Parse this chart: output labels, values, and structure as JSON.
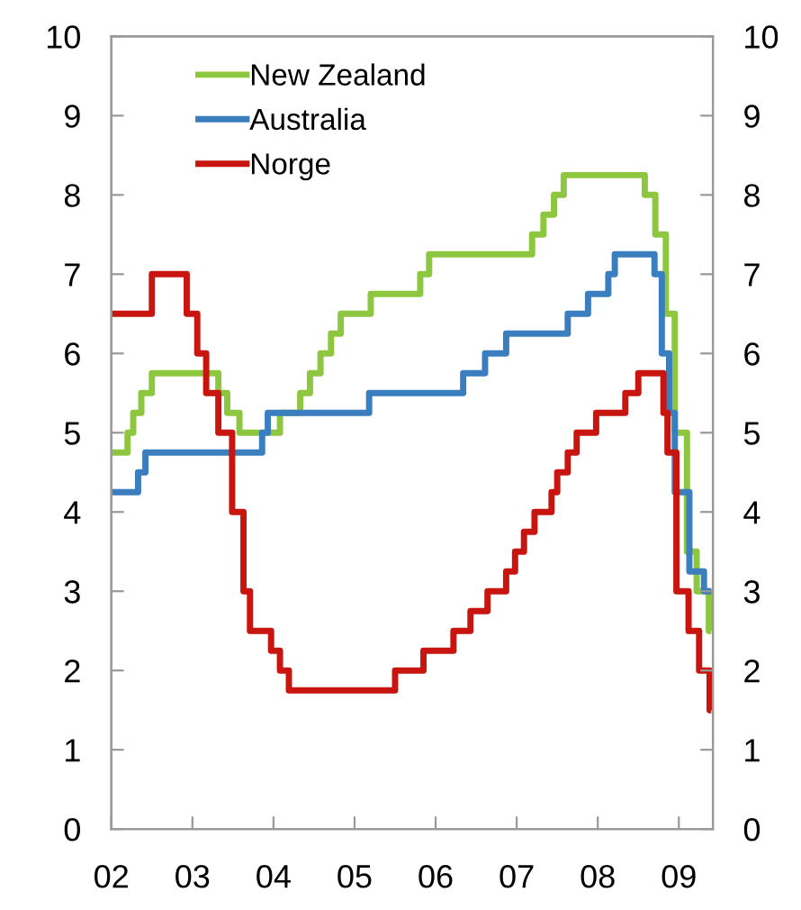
{
  "chart_data": {
    "type": "step",
    "xlim": [
      2002,
      2009.42
    ],
    "xticks": [
      {
        "value": 2002,
        "label": "02"
      },
      {
        "value": 2003,
        "label": "03"
      },
      {
        "value": 2004,
        "label": "04"
      },
      {
        "value": 2005,
        "label": "05"
      },
      {
        "value": 2006,
        "label": "06"
      },
      {
        "value": 2007,
        "label": "07"
      },
      {
        "value": 2008,
        "label": "08"
      },
      {
        "value": 2009,
        "label": "09"
      }
    ],
    "ylim": [
      0,
      10
    ],
    "yticks": [
      0,
      1,
      2,
      3,
      4,
      5,
      6,
      7,
      8,
      9,
      10
    ],
    "y2lim": [
      0,
      10
    ],
    "y2ticks": [
      0,
      1,
      2,
      3,
      4,
      5,
      6,
      7,
      8,
      9,
      10
    ],
    "grid": false,
    "legend": "top left",
    "series": [
      {
        "name": "New Zealand",
        "color": "#8dc63f",
        "x": [
          2002.0,
          2002.2,
          2002.27,
          2002.37,
          2002.5,
          2003.32,
          2003.43,
          2003.58,
          2004.08,
          2004.33,
          2004.45,
          2004.58,
          2004.71,
          2004.83,
          2005.2,
          2005.81,
          2005.92,
          2007.19,
          2007.33,
          2007.46,
          2007.58,
          2008.58,
          2008.71,
          2008.84,
          2008.95,
          2009.1,
          2009.22,
          2009.37,
          2009.4
        ],
        "values": [
          4.75,
          5.0,
          5.25,
          5.5,
          5.75,
          5.5,
          5.25,
          5.0,
          5.25,
          5.5,
          5.75,
          6.0,
          6.25,
          6.5,
          6.75,
          7.0,
          7.25,
          7.5,
          7.75,
          8.0,
          8.25,
          8.0,
          7.5,
          6.5,
          5.0,
          3.5,
          3.0,
          2.5,
          2.5
        ]
      },
      {
        "name": "Australia",
        "color": "#3a7ebf",
        "x": [
          2002.0,
          2002.33,
          2002.42,
          2003.86,
          2003.93,
          2005.18,
          2006.34,
          2006.61,
          2006.87,
          2007.63,
          2007.88,
          2008.13,
          2008.21,
          2008.7,
          2008.79,
          2008.88,
          2008.95,
          2009.13,
          2009.31,
          2009.4
        ],
        "values": [
          4.25,
          4.5,
          4.75,
          5.0,
          5.25,
          5.5,
          5.75,
          6.0,
          6.25,
          6.5,
          6.75,
          7.0,
          7.25,
          7.0,
          6.0,
          5.25,
          4.25,
          3.25,
          3.0,
          3.0
        ]
      },
      {
        "name": "Norge",
        "color": "#c8150f",
        "x": [
          2002.0,
          2002.5,
          2002.93,
          2003.06,
          2003.17,
          2003.32,
          2003.49,
          2003.63,
          2003.71,
          2003.97,
          2004.08,
          2004.19,
          2005.5,
          2005.85,
          2006.22,
          2006.43,
          2006.64,
          2006.87,
          2006.98,
          2007.09,
          2007.22,
          2007.43,
          2007.5,
          2007.63,
          2007.74,
          2007.98,
          2008.34,
          2008.5,
          2008.81,
          2008.86,
          2008.97,
          2009.12,
          2009.25,
          2009.38,
          2009.4
        ],
        "values": [
          6.5,
          7.0,
          6.5,
          6.0,
          5.5,
          5.0,
          4.0,
          3.0,
          2.5,
          2.25,
          2.0,
          1.75,
          2.0,
          2.25,
          2.5,
          2.75,
          3.0,
          3.25,
          3.5,
          3.75,
          4.0,
          4.25,
          4.5,
          4.75,
          5.0,
          5.25,
          5.5,
          5.75,
          5.25,
          4.75,
          3.0,
          2.5,
          2.0,
          1.5,
          1.5
        ]
      }
    ]
  }
}
